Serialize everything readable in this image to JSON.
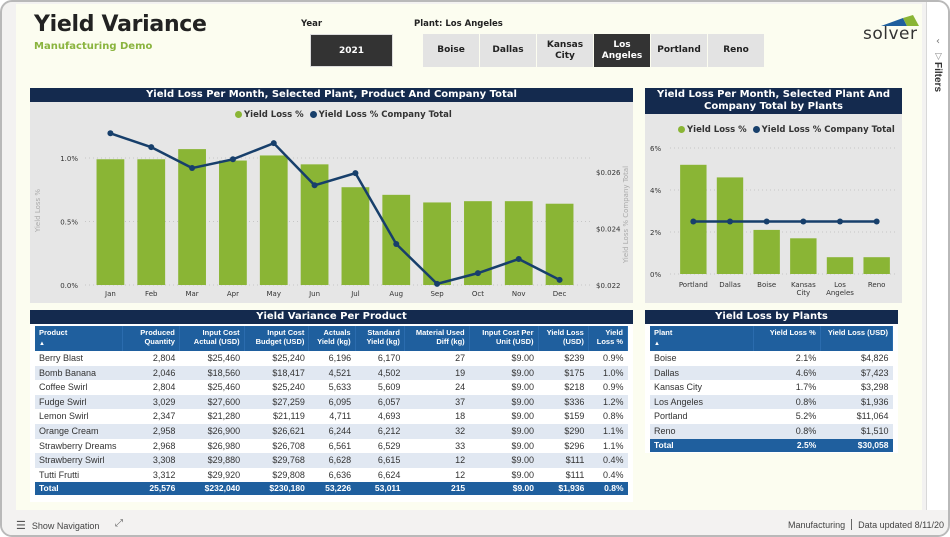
{
  "header": {
    "title": "Yield Variance",
    "subtitle": "Manufacturing Demo",
    "year_label": "Year",
    "year_value": "2021",
    "plant_label": "Plant: Los Angeles",
    "plants": [
      {
        "label": "Boise",
        "selected": false
      },
      {
        "label": "Dallas",
        "selected": false
      },
      {
        "label": "Kansas City",
        "selected": false
      },
      {
        "label": "Los Angeles",
        "selected": true
      },
      {
        "label": "Portland",
        "selected": false
      },
      {
        "label": "Reno",
        "selected": false
      }
    ],
    "logo_text": "solver"
  },
  "filters_pane": {
    "label": "Filters",
    "collapse_icon": "chevron-left-icon",
    "filter_icon": "funnel-icon"
  },
  "bottombar": {
    "show_navigation": "Show Navigation",
    "page_name": "Manufacturing",
    "data_updated": "Data updated 8/11/20"
  },
  "colors": {
    "bar": "#8ab535",
    "line": "#173f6b",
    "header_navy": "#142a4e",
    "table_header": "#1f5f9e",
    "selected_button": "#333333",
    "subtitle_green": "#8ab43e"
  },
  "chart_data": [
    {
      "type": "bar+line",
      "title": "Yield Loss Per Month, Selected Plant, Product And Company Total",
      "legend": [
        "Yield Loss %",
        "Yield Loss % Company Total"
      ],
      "legend_position": "top-center",
      "categories": [
        "Jan",
        "Feb",
        "Mar",
        "Apr",
        "May",
        "Jun",
        "Jul",
        "Aug",
        "Sep",
        "Oct",
        "Nov",
        "Dec"
      ],
      "series": [
        {
          "name": "Yield Loss %",
          "type": "bar",
          "axis": "left",
          "values": [
            0.99,
            0.99,
            1.07,
            0.98,
            1.02,
            0.95,
            0.77,
            0.71,
            0.65,
            0.66,
            0.66,
            0.64
          ]
        },
        {
          "name": "Yield Loss % Company Total",
          "type": "line",
          "axis": "right",
          "values": [
            0.02737,
            0.02688,
            0.02614,
            0.02645,
            0.02702,
            0.02553,
            0.02596,
            0.02345,
            0.02204,
            0.02242,
            0.02292,
            0.02218
          ]
        }
      ],
      "ylabel": "Yield Loss %",
      "ylabel_right": "Yield Loss % Company Total",
      "yticks": [
        "0.0%",
        "0.5%",
        "1.0%"
      ],
      "yticks_values": [
        0,
        0.5,
        1.0
      ],
      "ylim": [
        0,
        1.0
      ],
      "yticks_right": [
        "$0.022",
        "$0.024",
        "$0.026"
      ],
      "yticks_right_values": [
        0.022,
        0.024,
        0.026
      ],
      "ylim_right": [
        0.022,
        0.026
      ],
      "grid": true
    },
    {
      "type": "bar+line",
      "title": "Yield Loss Per Month, Selected Plant And Company Total by Plants",
      "legend": [
        "Yield Loss %",
        "Yield Loss % Company Total"
      ],
      "legend_position": "top-center",
      "categories": [
        "Portland",
        "Dallas",
        "Boise",
        "Kansas City",
        "Los Angeles",
        "Reno"
      ],
      "series": [
        {
          "name": "Yield Loss %",
          "type": "bar",
          "values": [
            5.2,
            4.6,
            2.1,
            1.7,
            0.8,
            0.8
          ]
        },
        {
          "name": "Yield Loss % Company Total",
          "type": "line",
          "values": [
            2.5,
            2.5,
            2.5,
            2.5,
            2.5,
            2.5
          ]
        }
      ],
      "yticks": [
        "0%",
        "2%",
        "4%",
        "6%"
      ],
      "yticks_values": [
        0,
        2,
        4,
        6
      ],
      "ylim": [
        0,
        6
      ],
      "grid": true
    }
  ],
  "product_table": {
    "title": "Yield Variance Per Product",
    "columns": [
      "Product",
      "Produced Quantity",
      "Input Cost Actual (USD)",
      "Input Cost Budget (USD)",
      "Actuals Yield (kg)",
      "Standard Yield (kg)",
      "Material Used Diff (kg)",
      "Input Cost Per Unit (USD)",
      "Yield Loss (USD)",
      "Yield Loss %"
    ],
    "rows": [
      [
        "Berry Blast",
        "2,804",
        "$25,460",
        "$25,240",
        "6,196",
        "6,170",
        "27",
        "$9.00",
        "$239",
        "0.9%"
      ],
      [
        "Bomb Banana",
        "2,046",
        "$18,560",
        "$18,417",
        "4,521",
        "4,502",
        "19",
        "$9.00",
        "$175",
        "1.0%"
      ],
      [
        "Coffee Swirl",
        "2,804",
        "$25,460",
        "$25,240",
        "5,633",
        "5,609",
        "24",
        "$9.00",
        "$218",
        "0.9%"
      ],
      [
        "Fudge Swirl",
        "3,029",
        "$27,600",
        "$27,259",
        "6,095",
        "6,057",
        "37",
        "$9.00",
        "$336",
        "1.2%"
      ],
      [
        "Lemon Swirl",
        "2,347",
        "$21,280",
        "$21,119",
        "4,711",
        "4,693",
        "18",
        "$9.00",
        "$159",
        "0.8%"
      ],
      [
        "Orange Cream",
        "2,958",
        "$26,900",
        "$26,621",
        "6,244",
        "6,212",
        "32",
        "$9.00",
        "$290",
        "1.1%"
      ],
      [
        "Strawberry Dreams",
        "2,968",
        "$26,980",
        "$26,708",
        "6,561",
        "6,529",
        "33",
        "$9.00",
        "$296",
        "1.1%"
      ],
      [
        "Strawberry Swirl",
        "3,308",
        "$29,880",
        "$29,768",
        "6,628",
        "6,615",
        "12",
        "$9.00",
        "$111",
        "0.4%"
      ],
      [
        "Tutti Frutti",
        "3,312",
        "$29,920",
        "$29,808",
        "6,636",
        "6,624",
        "12",
        "$9.00",
        "$111",
        "0.4%"
      ]
    ],
    "total": [
      "Total",
      "25,576",
      "$232,040",
      "$230,180",
      "53,226",
      "53,011",
      "215",
      "$9.00",
      "$1,936",
      "0.8%"
    ]
  },
  "plant_table": {
    "title": "Yield Loss by Plants",
    "columns": [
      "Plant",
      "Yield Loss %",
      "Yield Loss (USD)"
    ],
    "rows": [
      [
        "Boise",
        "2.1%",
        "$4,826"
      ],
      [
        "Dallas",
        "4.6%",
        "$7,423"
      ],
      [
        "Kansas City",
        "1.7%",
        "$3,298"
      ],
      [
        "Los Angeles",
        "0.8%",
        "$1,936"
      ],
      [
        "Portland",
        "5.2%",
        "$11,064"
      ],
      [
        "Reno",
        "0.8%",
        "$1,510"
      ]
    ],
    "total": [
      "Total",
      "2.5%",
      "$30,058"
    ]
  }
}
